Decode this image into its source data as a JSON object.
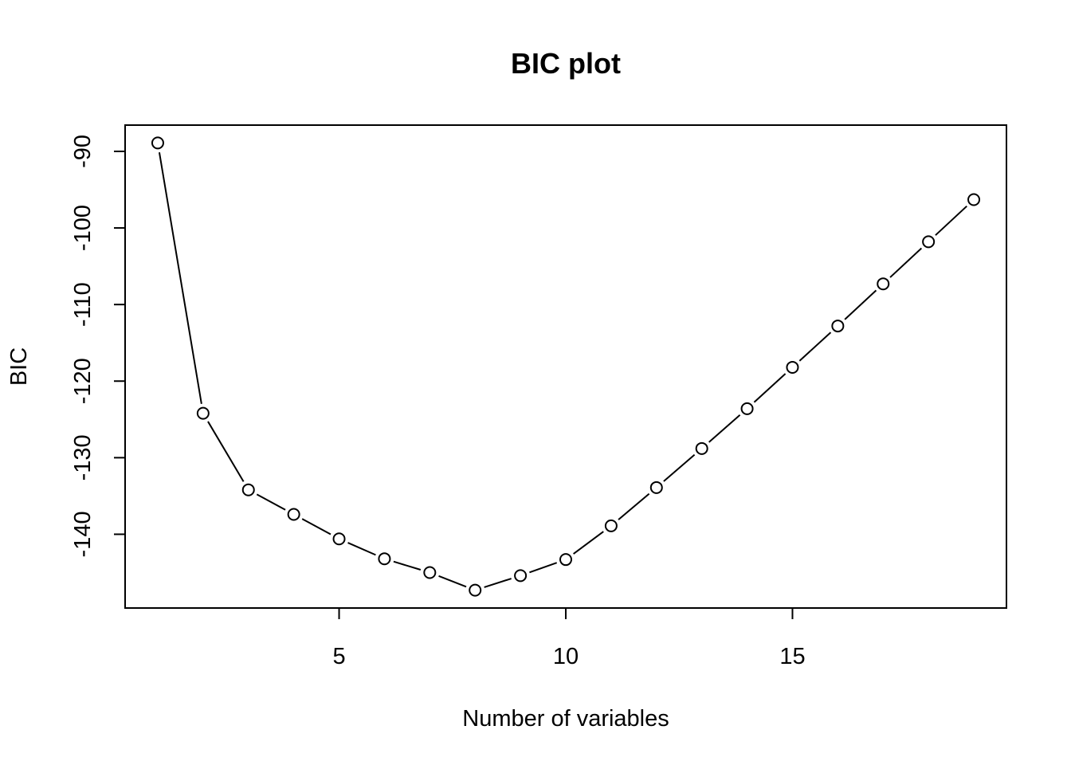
{
  "chart_data": {
    "type": "line",
    "title": "BIC plot",
    "xlabel": "Number of variables",
    "ylabel": "BIC",
    "x": [
      1,
      2,
      3,
      4,
      5,
      6,
      7,
      8,
      9,
      10,
      11,
      12,
      13,
      14,
      15,
      16,
      17,
      18,
      19
    ],
    "series": [
      {
        "values": [
          -88.9,
          -124.2,
          -134.2,
          -137.4,
          -140.6,
          -143.2,
          -145.0,
          -147.3,
          -145.4,
          -143.3,
          -138.9,
          -133.9,
          -128.8,
          -123.6,
          -118.2,
          -112.8,
          -107.3,
          -101.8,
          -96.3
        ]
      }
    ],
    "xlim": [
      0.28,
      19.72
    ],
    "ylim": [
      -149.63,
      -86.57
    ],
    "xticks": [
      5,
      10,
      15
    ],
    "yticks": [
      -90,
      -100,
      -110,
      -120,
      -130,
      -140
    ],
    "marker": "open-circle",
    "line_style": "both",
    "grid": false,
    "legend": "none"
  }
}
